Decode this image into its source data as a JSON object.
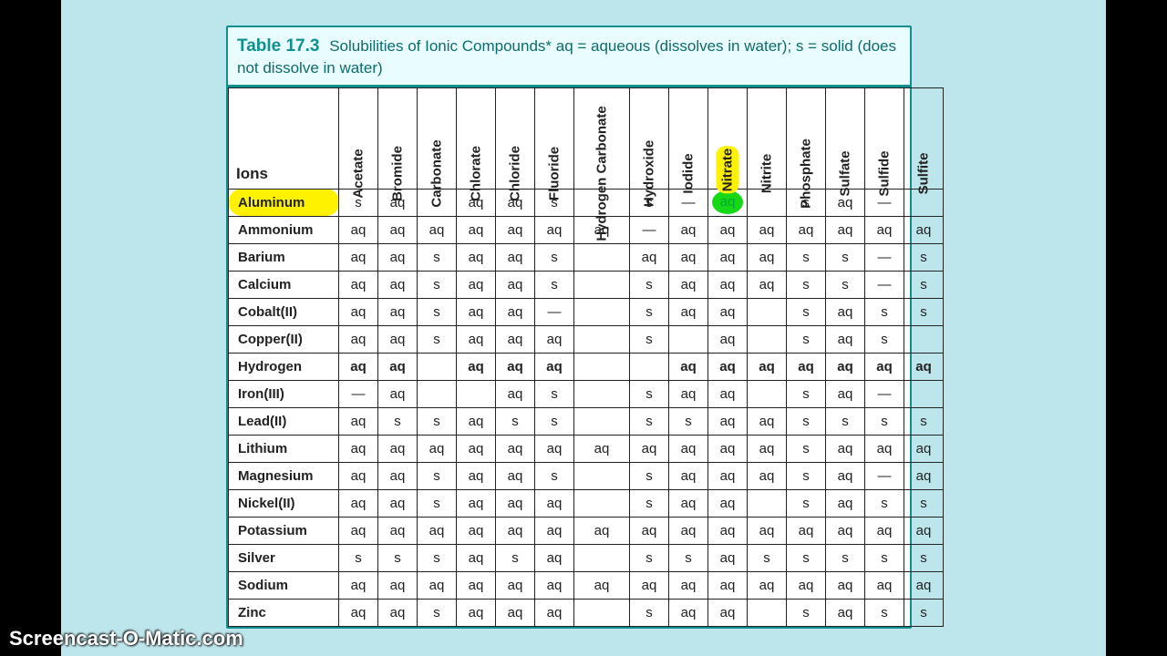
{
  "title": {
    "num": "Table 17.3",
    "text": "Solubilities of Ionic Compounds* aq = aqueous (dissolves in water); s = solid (does not dissolve in water)"
  },
  "ions_header": "Ions",
  "columns": [
    {
      "label": "Acetate"
    },
    {
      "label": "Bromide"
    },
    {
      "label": "Carbonate"
    },
    {
      "label": "Chlorate"
    },
    {
      "label": "Chloride"
    },
    {
      "label": "Fluoride"
    },
    {
      "label": "Hydrogen Carbonate",
      "wide": true
    },
    {
      "label": "Hydroxide"
    },
    {
      "label": "Iodide"
    },
    {
      "label": "Nitrate",
      "highlight": true
    },
    {
      "label": "Nitrite"
    },
    {
      "label": "Phosphate"
    },
    {
      "label": "Sulfate"
    },
    {
      "label": "Sulfide"
    },
    {
      "label": "Sulfite"
    }
  ],
  "rows": [
    {
      "ion": "Aluminum",
      "highlight": true,
      "cells": [
        "s",
        "aq",
        "",
        "aq",
        "aq",
        "s",
        "",
        "s",
        "—",
        {
          "v": "aq",
          "green": true
        },
        "",
        "s",
        "aq",
        "—",
        ""
      ]
    },
    {
      "ion": "Ammonium",
      "cells": [
        "aq",
        "aq",
        "aq",
        "aq",
        "aq",
        "aq",
        "aq",
        "—",
        "aq",
        "aq",
        "aq",
        "aq",
        "aq",
        "aq",
        "aq"
      ]
    },
    {
      "ion": "Barium",
      "cells": [
        "aq",
        "aq",
        "s",
        "aq",
        "aq",
        "s",
        "",
        "aq",
        "aq",
        "aq",
        "aq",
        "s",
        "s",
        "—",
        "s"
      ]
    },
    {
      "ion": "Calcium",
      "cells": [
        "aq",
        "aq",
        "s",
        "aq",
        "aq",
        "s",
        "",
        "s",
        "aq",
        "aq",
        "aq",
        "s",
        "s",
        "—",
        "s"
      ]
    },
    {
      "ion": "Cobalt(II)",
      "cells": [
        "aq",
        "aq",
        "s",
        "aq",
        "aq",
        "—",
        "",
        "s",
        "aq",
        "aq",
        "",
        "s",
        "aq",
        "s",
        "s"
      ]
    },
    {
      "ion": "Copper(II)",
      "cells": [
        "aq",
        "aq",
        "s",
        "aq",
        "aq",
        "aq",
        "",
        "s",
        "",
        "aq",
        "",
        "s",
        "aq",
        "s",
        ""
      ]
    },
    {
      "ion": "Hydrogen",
      "bold": true,
      "cells": [
        "aq",
        "aq",
        "",
        "aq",
        "aq",
        "aq",
        "",
        "",
        "aq",
        "aq",
        "aq",
        "aq",
        "aq",
        "aq",
        "aq"
      ]
    },
    {
      "ion": "Iron(III)",
      "cells": [
        "—",
        "aq",
        "",
        "",
        "aq",
        "s",
        "",
        "s",
        "aq",
        "aq",
        "",
        "s",
        "aq",
        "—",
        ""
      ]
    },
    {
      "ion": "Lead(II)",
      "cells": [
        "aq",
        "s",
        "s",
        "aq",
        "s",
        "s",
        "",
        "s",
        "s",
        "aq",
        "aq",
        "s",
        "s",
        "s",
        "s"
      ]
    },
    {
      "ion": "Lithium",
      "cells": [
        "aq",
        "aq",
        "aq",
        "aq",
        "aq",
        "aq",
        "aq",
        "aq",
        "aq",
        "aq",
        "aq",
        "s",
        "aq",
        "aq",
        "aq"
      ]
    },
    {
      "ion": "Magnesium",
      "cells": [
        "aq",
        "aq",
        "s",
        "aq",
        "aq",
        "s",
        "",
        "s",
        "aq",
        "aq",
        "aq",
        "s",
        "aq",
        "—",
        "aq"
      ]
    },
    {
      "ion": "Nickel(II)",
      "cells": [
        "aq",
        "aq",
        "s",
        "aq",
        "aq",
        "aq",
        "",
        "s",
        "aq",
        "aq",
        "",
        "s",
        "aq",
        "s",
        "s"
      ]
    },
    {
      "ion": "Potassium",
      "cells": [
        "aq",
        "aq",
        "aq",
        "aq",
        "aq",
        "aq",
        "aq",
        "aq",
        "aq",
        "aq",
        "aq",
        "aq",
        "aq",
        "aq",
        "aq"
      ]
    },
    {
      "ion": "Silver",
      "cells": [
        "s",
        "s",
        "s",
        "aq",
        "s",
        "aq",
        "",
        "s",
        "s",
        "aq",
        "s",
        "s",
        "s",
        "s",
        "s"
      ]
    },
    {
      "ion": "Sodium",
      "cells": [
        "aq",
        "aq",
        "aq",
        "aq",
        "aq",
        "aq",
        "aq",
        "aq",
        "aq",
        "aq",
        "aq",
        "aq",
        "aq",
        "aq",
        "aq"
      ]
    },
    {
      "ion": "Zinc",
      "cells": [
        "aq",
        "aq",
        "s",
        "aq",
        "aq",
        "aq",
        "",
        "s",
        "aq",
        "aq",
        "",
        "s",
        "aq",
        "s",
        "s"
      ]
    }
  ],
  "watermark": "Screencast-O-Matic.com",
  "colors": {
    "page_bg": "#bde6ec",
    "letterbox": "#000000",
    "teal": "#0f8f8f",
    "highlight_yellow": "#fff200",
    "highlight_green": "#16d816",
    "card_bg": "#ffffff",
    "titlebar_bg": "#e9fcff",
    "border": "#222222"
  }
}
